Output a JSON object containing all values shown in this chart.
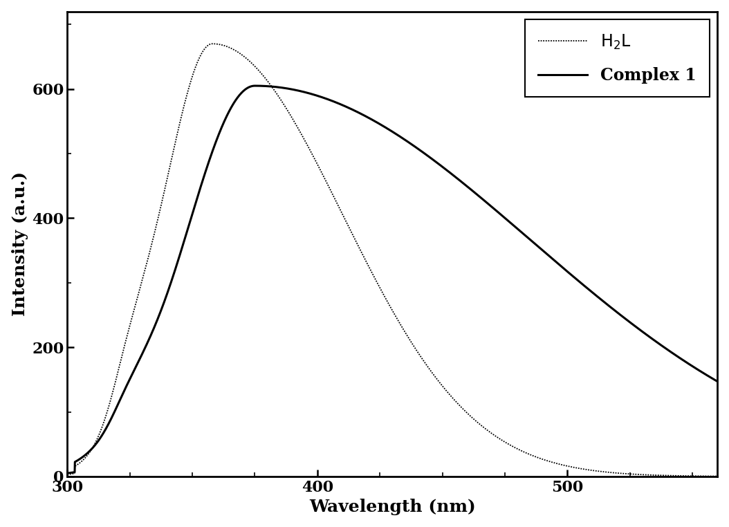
{
  "title": "",
  "xlabel": "Wavelength (nm)",
  "ylabel": "Intensity (a.u.)",
  "xlim": [
    300,
    560
  ],
  "ylim": [
    0,
    720
  ],
  "xticks": [
    300,
    400,
    500
  ],
  "yticks": [
    0,
    200,
    400,
    600
  ],
  "h2l_color": "#000000",
  "complex1_color": "#000000",
  "h2l_linewidth": 1.3,
  "complex1_linewidth": 2.2,
  "background_color": "#ffffff",
  "font_size_labels": 18,
  "font_size_ticks": 16,
  "font_size_legend": 17
}
